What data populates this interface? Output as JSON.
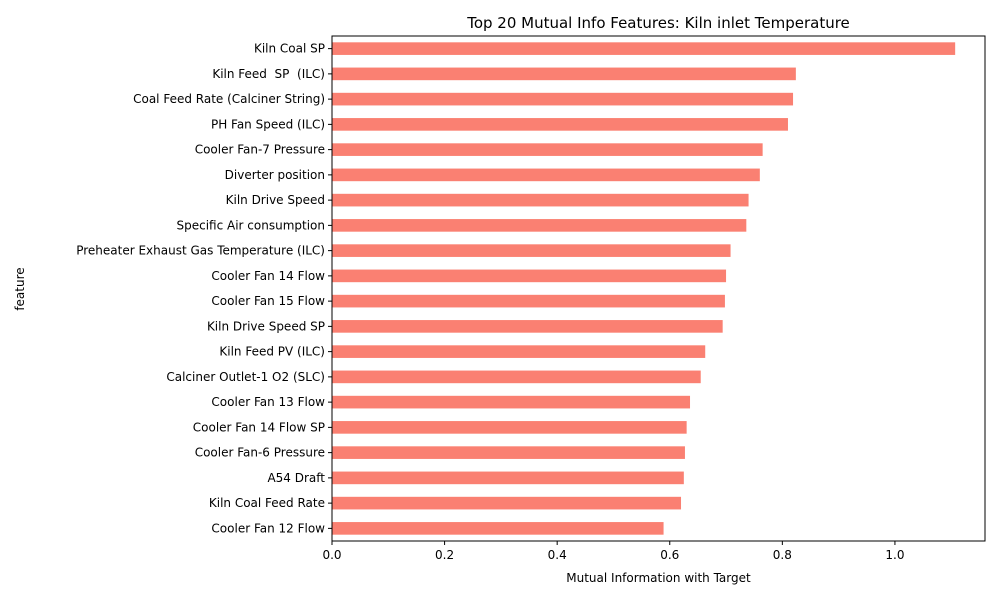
{
  "chart_data": {
    "type": "bar",
    "orientation": "horizontal",
    "title": "Top 20 Mutual Info Features: Kiln inlet Temperature",
    "xlabel": "Mutual Information with Target",
    "ylabel": "feature",
    "xlim": [
      0,
      1.16
    ],
    "xticks": [
      {
        "value": 0.0,
        "label": "0.0"
      },
      {
        "value": 0.2,
        "label": "0.2"
      },
      {
        "value": 0.4,
        "label": "0.4"
      },
      {
        "value": 0.6,
        "label": "0.6"
      },
      {
        "value": 0.8,
        "label": "0.8"
      },
      {
        "value": 1.0,
        "label": "1.0"
      }
    ],
    "grid": false,
    "bar_color": "#fa8072",
    "categories": [
      "Kiln Coal SP",
      "Kiln Feed  SP  (ILC)",
      "Coal Feed Rate (Calciner String)",
      "PH Fan Speed (ILC)",
      "Cooler Fan-7 Pressure",
      "Diverter position",
      "Kiln Drive Speed",
      "Specific Air consumption",
      "Preheater Exhaust Gas Temperature (ILC)",
      "Cooler Fan 14 Flow",
      "Cooler Fan 15 Flow",
      "Kiln Drive Speed SP",
      "Kiln Feed PV (ILC)",
      "Calciner Outlet-1 O2 (SLC)",
      "Cooler Fan 13 Flow",
      "Cooler Fan 14 Flow SP",
      "Cooler Fan-6 Pressure",
      "A54 Draft",
      "Kiln Coal Feed Rate",
      "Cooler Fan 12 Flow"
    ],
    "values": [
      1.107,
      0.824,
      0.819,
      0.81,
      0.765,
      0.76,
      0.74,
      0.736,
      0.708,
      0.7,
      0.698,
      0.694,
      0.663,
      0.655,
      0.636,
      0.63,
      0.627,
      0.625,
      0.62,
      0.589
    ]
  }
}
